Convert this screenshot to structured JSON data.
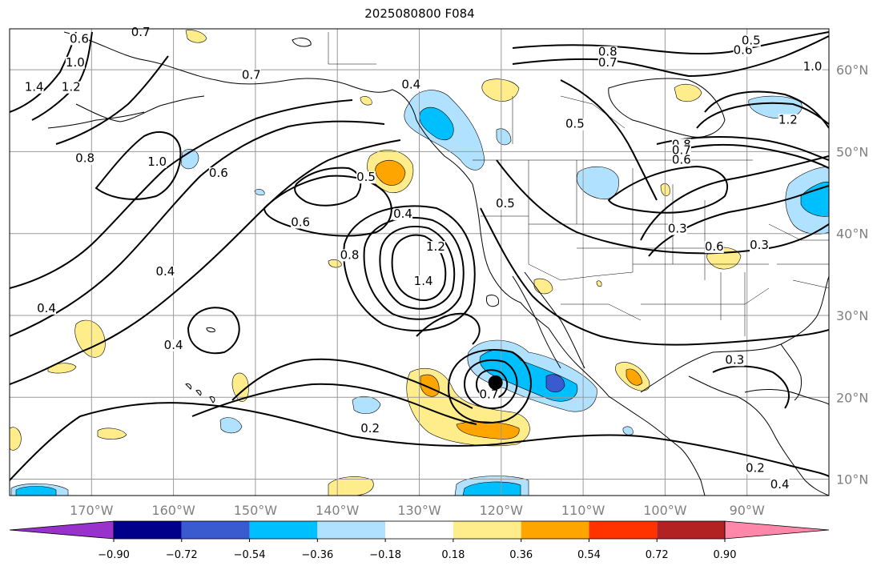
{
  "title": "2025080800 F084",
  "map": {
    "extent": {
      "lon_min": -180,
      "lon_max": -80,
      "lat_min": 8,
      "lat_max": 65
    },
    "lat_ticks": [
      {
        "lat": 60,
        "label": "60°N"
      },
      {
        "lat": 50,
        "label": "50°N"
      },
      {
        "lat": 40,
        "label": "40°N"
      },
      {
        "lat": 30,
        "label": "30°N"
      },
      {
        "lat": 20,
        "label": "20°N"
      },
      {
        "lat": 10,
        "label": "10°N"
      }
    ],
    "lon_ticks": [
      {
        "lon": -170,
        "label": "170°W"
      },
      {
        "lon": -160,
        "label": "160°W"
      },
      {
        "lon": -150,
        "label": "150°W"
      },
      {
        "lon": -140,
        "label": "140°W"
      },
      {
        "lon": -130,
        "label": "130°W"
      },
      {
        "lon": -120,
        "label": "120°W"
      },
      {
        "lon": -110,
        "label": "110°W"
      },
      {
        "lon": -100,
        "label": "100°W"
      },
      {
        "lon": -90,
        "label": "90°W"
      }
    ],
    "storm_marker": {
      "lon": -120.7,
      "lat": 21.8
    },
    "contour_labels": [
      {
        "text": "0.6",
        "lon": -171.5,
        "lat": 63.4
      },
      {
        "text": "0.7",
        "lon": -164.0,
        "lat": 64.2
      },
      {
        "text": "1.0",
        "lon": -172.0,
        "lat": 60.5
      },
      {
        "text": "1.2",
        "lon": -172.5,
        "lat": 57.5
      },
      {
        "text": "1.4",
        "lon": -177.0,
        "lat": 57.5
      },
      {
        "text": "0.7",
        "lon": -150.5,
        "lat": 59.0
      },
      {
        "text": "0.8",
        "lon": -170.8,
        "lat": 48.8
      },
      {
        "text": "1.0",
        "lon": -162.0,
        "lat": 48.4
      },
      {
        "text": "0.6",
        "lon": -154.5,
        "lat": 47.0
      },
      {
        "text": "0.6",
        "lon": -144.5,
        "lat": 41.0
      },
      {
        "text": "0.5",
        "lon": -136.5,
        "lat": 46.5
      },
      {
        "text": "0.4",
        "lon": -132.0,
        "lat": 42.0
      },
      {
        "text": "0.8",
        "lon": -138.5,
        "lat": 37.0
      },
      {
        "text": "1.2",
        "lon": -128.0,
        "lat": 38.0
      },
      {
        "text": "1.4",
        "lon": -129.5,
        "lat": 33.8
      },
      {
        "text": "0.4",
        "lon": -161.0,
        "lat": 35.0
      },
      {
        "text": "0.4",
        "lon": -175.5,
        "lat": 30.5
      },
      {
        "text": "0.4",
        "lon": -160.0,
        "lat": 26.0
      },
      {
        "text": "0.2",
        "lon": -136.0,
        "lat": 15.8
      },
      {
        "text": "0.4",
        "lon": -131.0,
        "lat": 57.8
      },
      {
        "text": "0.5",
        "lon": -119.5,
        "lat": 43.3
      },
      {
        "text": "0.5",
        "lon": -111.0,
        "lat": 53.0
      },
      {
        "text": "0.8",
        "lon": -107.0,
        "lat": 61.8
      },
      {
        "text": "0.7",
        "lon": -107.0,
        "lat": 60.5
      },
      {
        "text": "0.6",
        "lon": -90.5,
        "lat": 62.0
      },
      {
        "text": "0.5",
        "lon": -89.5,
        "lat": 63.2
      },
      {
        "text": "1.0",
        "lon": -82.0,
        "lat": 60.0
      },
      {
        "text": "1.2",
        "lon": -85.0,
        "lat": 53.5
      },
      {
        "text": "0.8",
        "lon": -98.0,
        "lat": 50.5
      },
      {
        "text": "0.7",
        "lon": -98.0,
        "lat": 49.8
      },
      {
        "text": "0.6",
        "lon": -98.0,
        "lat": 48.6
      },
      {
        "text": "0.3",
        "lon": -98.5,
        "lat": 40.2
      },
      {
        "text": "0.6",
        "lon": -94.0,
        "lat": 38.0
      },
      {
        "text": "0.3",
        "lon": -88.5,
        "lat": 38.2
      },
      {
        "text": "0.3",
        "lon": -91.5,
        "lat": 24.2
      },
      {
        "text": "0.2",
        "lon": -89.0,
        "lat": 11.0
      },
      {
        "text": "0.4",
        "lon": -86.0,
        "lat": 9.0
      },
      {
        "text": "0.7",
        "lon": -121.5,
        "lat": 20.0
      }
    ]
  },
  "colorbar": {
    "colors": [
      "#9932cc",
      "#00008b",
      "#3a5bd0",
      "#00bfff",
      "#b0e2ff",
      "#ffffff",
      "#ffec8b",
      "#ffa500",
      "#ff3300",
      "#b22222",
      "#ff88aa"
    ],
    "bounds": [
      -0.9,
      -0.72,
      -0.54,
      -0.36,
      -0.18,
      0.18,
      0.36,
      0.54,
      0.72,
      0.9
    ],
    "tick_labels": [
      "−0.90",
      "−0.72",
      "−0.54",
      "−0.36",
      "−0.18",
      "0.18",
      "0.36",
      "0.54",
      "0.72",
      "0.90"
    ]
  }
}
